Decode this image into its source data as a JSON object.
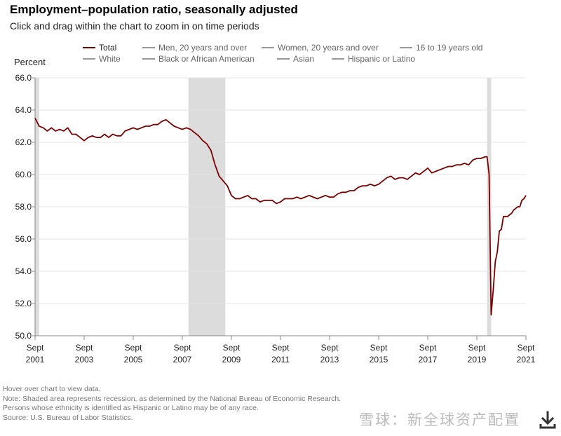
{
  "header": {
    "title": "Employment–population ratio, seasonally adjusted",
    "subtitle": "Click and drag within the chart to zoom in on time periods"
  },
  "legend": {
    "rows": [
      [
        {
          "label": "Total",
          "active": true
        },
        {
          "label": "Men, 20 years and over",
          "active": false
        },
        {
          "label": "Women, 20 years and over",
          "active": false
        },
        {
          "label": "16 to 19 years old",
          "active": false
        }
      ],
      [
        {
          "label": "White",
          "active": false
        },
        {
          "label": "Black or African American",
          "active": false
        },
        {
          "label": "Asian",
          "active": false
        },
        {
          "label": "Hispanic or Latino",
          "active": false
        }
      ]
    ]
  },
  "notes": [
    "Hover over chart to view data.",
    "Note: Shaded area represents recession, as determined by the National Bureau of Economic Research.",
    "Persons whose ethnicity is identified as Hispanic or Latino may be of any race.",
    "Source: U.S. Bureau of Labor Statistics."
  ],
  "watermark": "雪球：新全球资产配置",
  "icons": {
    "download": "download-icon"
  },
  "colors": {
    "line": "#7a0000",
    "recession": "#dcdcdc",
    "axis": "#888888"
  },
  "chart_data": {
    "type": "line",
    "title": "Employment–population ratio, seasonally adjusted",
    "ylabel": "Percent",
    "xlabel": "",
    "ylim": [
      50.0,
      66.0
    ],
    "xlim": [
      "2001-09",
      "2021-09"
    ],
    "y_ticks": [
      "50.0",
      "52.0",
      "54.0",
      "56.0",
      "58.0",
      "60.0",
      "62.0",
      "64.0",
      "66.0"
    ],
    "x_ticks": [
      {
        "month": "Sept",
        "year": "2001",
        "date": "2001-09"
      },
      {
        "month": "Sept",
        "year": "2003",
        "date": "2003-09"
      },
      {
        "month": "Sept",
        "year": "2005",
        "date": "2005-09"
      },
      {
        "month": "Sept",
        "year": "2007",
        "date": "2007-09"
      },
      {
        "month": "Sept",
        "year": "2009",
        "date": "2009-09"
      },
      {
        "month": "Sept",
        "year": "2011",
        "date": "2011-09"
      },
      {
        "month": "Sept",
        "year": "2013",
        "date": "2013-09"
      },
      {
        "month": "Sept",
        "year": "2015",
        "date": "2015-09"
      },
      {
        "month": "Sept",
        "year": "2017",
        "date": "2017-09"
      },
      {
        "month": "Sept",
        "year": "2019",
        "date": "2019-09"
      },
      {
        "month": "Sept",
        "year": "2021",
        "date": "2021-09"
      }
    ],
    "grid": true,
    "recessions": [
      {
        "start": "2001-09",
        "end": "2001-11"
      },
      {
        "start": "2007-12",
        "end": "2009-06"
      },
      {
        "start": "2020-02",
        "end": "2020-04"
      }
    ],
    "series": [
      {
        "name": "Total",
        "points": [
          [
            "2001-09",
            63.5
          ],
          [
            "2001-11",
            63.0
          ],
          [
            "2002-01",
            62.9
          ],
          [
            "2002-03",
            62.7
          ],
          [
            "2002-05",
            62.9
          ],
          [
            "2002-07",
            62.7
          ],
          [
            "2002-09",
            62.8
          ],
          [
            "2002-11",
            62.7
          ],
          [
            "2003-01",
            62.9
          ],
          [
            "2003-03",
            62.5
          ],
          [
            "2003-05",
            62.5
          ],
          [
            "2003-07",
            62.3
          ],
          [
            "2003-09",
            62.1
          ],
          [
            "2003-11",
            62.3
          ],
          [
            "2004-01",
            62.4
          ],
          [
            "2004-03",
            62.3
          ],
          [
            "2004-05",
            62.3
          ],
          [
            "2004-07",
            62.5
          ],
          [
            "2004-09",
            62.3
          ],
          [
            "2004-11",
            62.5
          ],
          [
            "2005-01",
            62.4
          ],
          [
            "2005-03",
            62.4
          ],
          [
            "2005-05",
            62.7
          ],
          [
            "2005-07",
            62.8
          ],
          [
            "2005-09",
            62.9
          ],
          [
            "2005-11",
            62.8
          ],
          [
            "2006-01",
            62.9
          ],
          [
            "2006-03",
            63.0
          ],
          [
            "2006-05",
            63.0
          ],
          [
            "2006-07",
            63.1
          ],
          [
            "2006-09",
            63.1
          ],
          [
            "2006-11",
            63.3
          ],
          [
            "2007-01",
            63.4
          ],
          [
            "2007-03",
            63.2
          ],
          [
            "2007-05",
            63.0
          ],
          [
            "2007-07",
            62.9
          ],
          [
            "2007-09",
            62.8
          ],
          [
            "2007-11",
            62.9
          ],
          [
            "2008-01",
            62.8
          ],
          [
            "2008-03",
            62.6
          ],
          [
            "2008-05",
            62.4
          ],
          [
            "2008-07",
            62.1
          ],
          [
            "2008-09",
            61.9
          ],
          [
            "2008-11",
            61.5
          ],
          [
            "2009-01",
            60.6
          ],
          [
            "2009-03",
            59.9
          ],
          [
            "2009-05",
            59.6
          ],
          [
            "2009-07",
            59.3
          ],
          [
            "2009-09",
            58.7
          ],
          [
            "2009-11",
            58.5
          ],
          [
            "2010-01",
            58.5
          ],
          [
            "2010-03",
            58.6
          ],
          [
            "2010-05",
            58.7
          ],
          [
            "2010-07",
            58.5
          ],
          [
            "2010-09",
            58.5
          ],
          [
            "2010-11",
            58.3
          ],
          [
            "2011-01",
            58.4
          ],
          [
            "2011-03",
            58.4
          ],
          [
            "2011-05",
            58.4
          ],
          [
            "2011-07",
            58.2
          ],
          [
            "2011-09",
            58.3
          ],
          [
            "2011-11",
            58.5
          ],
          [
            "2012-01",
            58.5
          ],
          [
            "2012-03",
            58.5
          ],
          [
            "2012-05",
            58.6
          ],
          [
            "2012-07",
            58.5
          ],
          [
            "2012-09",
            58.6
          ],
          [
            "2012-11",
            58.7
          ],
          [
            "2013-01",
            58.6
          ],
          [
            "2013-03",
            58.5
          ],
          [
            "2013-05",
            58.6
          ],
          [
            "2013-07",
            58.7
          ],
          [
            "2013-09",
            58.6
          ],
          [
            "2013-11",
            58.6
          ],
          [
            "2014-01",
            58.8
          ],
          [
            "2014-03",
            58.9
          ],
          [
            "2014-05",
            58.9
          ],
          [
            "2014-07",
            59.0
          ],
          [
            "2014-09",
            59.0
          ],
          [
            "2014-11",
            59.2
          ],
          [
            "2015-01",
            59.3
          ],
          [
            "2015-03",
            59.3
          ],
          [
            "2015-05",
            59.4
          ],
          [
            "2015-07",
            59.3
          ],
          [
            "2015-09",
            59.4
          ],
          [
            "2015-11",
            59.6
          ],
          [
            "2016-01",
            59.8
          ],
          [
            "2016-03",
            59.9
          ],
          [
            "2016-05",
            59.7
          ],
          [
            "2016-07",
            59.8
          ],
          [
            "2016-09",
            59.8
          ],
          [
            "2016-11",
            59.7
          ],
          [
            "2017-01",
            59.9
          ],
          [
            "2017-03",
            60.1
          ],
          [
            "2017-05",
            60.0
          ],
          [
            "2017-07",
            60.2
          ],
          [
            "2017-09",
            60.4
          ],
          [
            "2017-11",
            60.1
          ],
          [
            "2018-01",
            60.2
          ],
          [
            "2018-03",
            60.3
          ],
          [
            "2018-05",
            60.4
          ],
          [
            "2018-07",
            60.5
          ],
          [
            "2018-09",
            60.5
          ],
          [
            "2018-11",
            60.6
          ],
          [
            "2019-01",
            60.6
          ],
          [
            "2019-03",
            60.7
          ],
          [
            "2019-05",
            60.6
          ],
          [
            "2019-07",
            60.9
          ],
          [
            "2019-09",
            61.0
          ],
          [
            "2019-11",
            61.0
          ],
          [
            "2020-01",
            61.1
          ],
          [
            "2020-02",
            61.1
          ],
          [
            "2020-03",
            60.0
          ],
          [
            "2020-04",
            51.3
          ],
          [
            "2020-05",
            52.8
          ],
          [
            "2020-06",
            54.6
          ],
          [
            "2020-07",
            55.2
          ],
          [
            "2020-08",
            56.5
          ],
          [
            "2020-09",
            56.6
          ],
          [
            "2020-10",
            57.4
          ],
          [
            "2020-11",
            57.4
          ],
          [
            "2020-12",
            57.4
          ],
          [
            "2021-01",
            57.5
          ],
          [
            "2021-02",
            57.6
          ],
          [
            "2021-03",
            57.8
          ],
          [
            "2021-04",
            57.9
          ],
          [
            "2021-05",
            58.0
          ],
          [
            "2021-06",
            58.0
          ],
          [
            "2021-07",
            58.4
          ],
          [
            "2021-08",
            58.5
          ],
          [
            "2021-09",
            58.7
          ]
        ]
      }
    ]
  }
}
